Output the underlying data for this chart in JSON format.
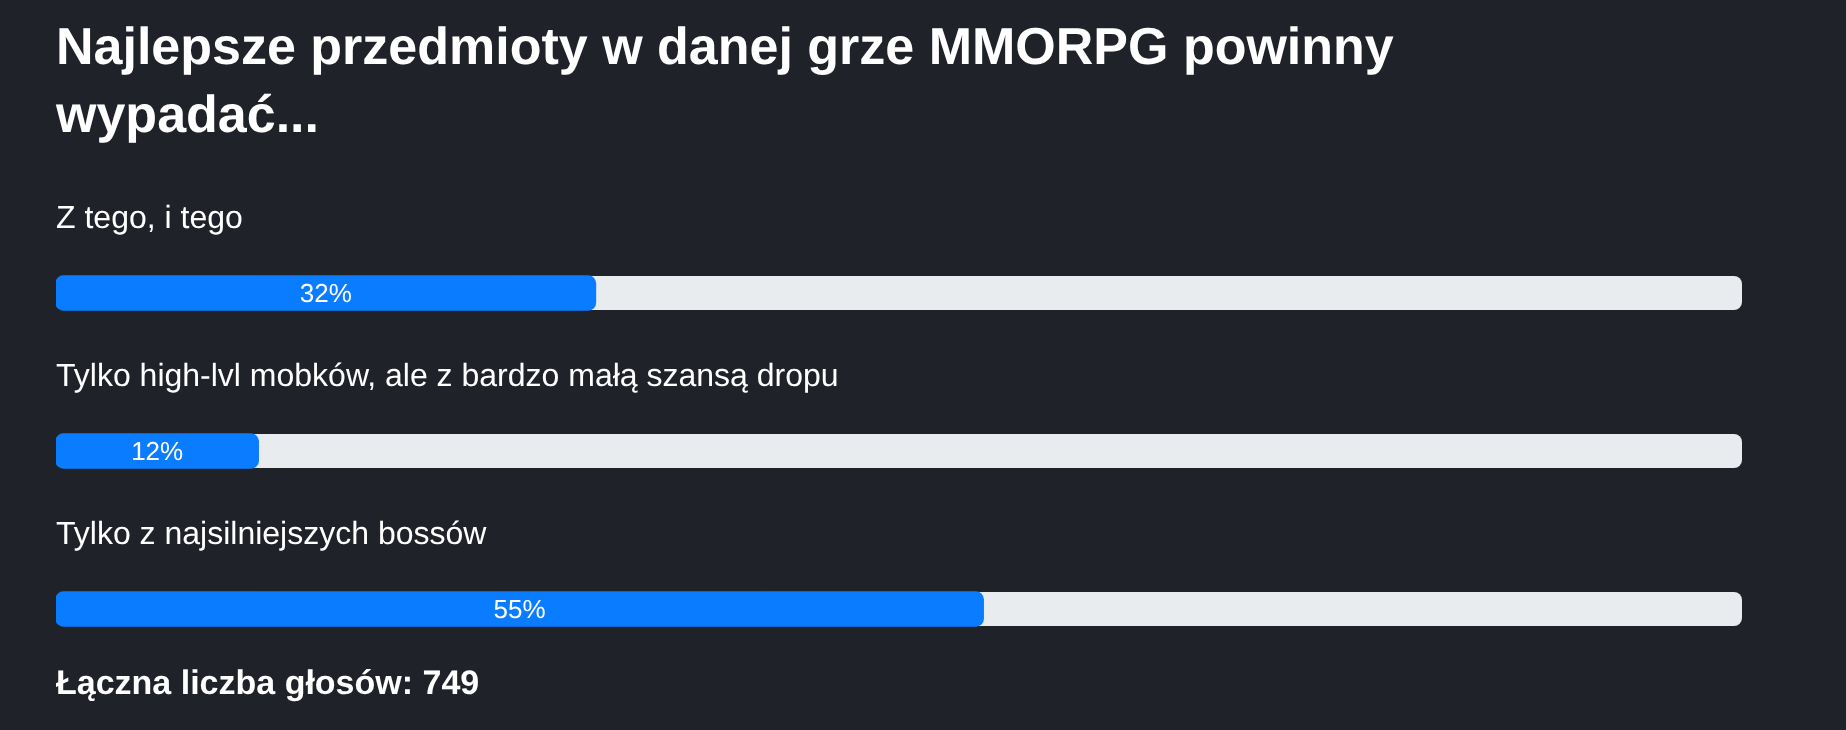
{
  "chart_data": {
    "type": "bar",
    "orientation": "horizontal",
    "title": "Najlepsze przedmioty w danej grze MMORPG powinny wypadać...",
    "categories": [
      "Z tego, i tego",
      "Tylko high-lvl mobków, ale z bardzo małą szansą dropu",
      "Tylko z najsilniejszych bossów"
    ],
    "values": [
      32,
      12,
      55
    ],
    "color": "#0a7cff",
    "xlim": [
      0,
      100
    ],
    "value_labels": [
      "32%",
      "12%",
      "55%"
    ],
    "annotations": [
      "Łączna liczba głosów: 749"
    ]
  }
}
